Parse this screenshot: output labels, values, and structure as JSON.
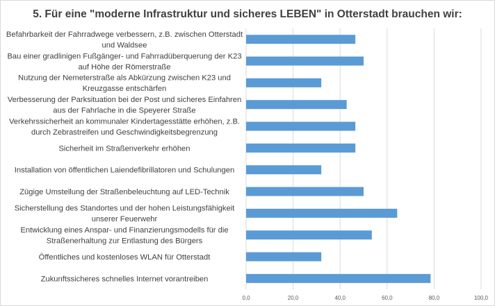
{
  "chart_data": {
    "type": "bar",
    "orientation": "horizontal",
    "title": "5. Für eine \"moderne Infrastruktur und sicheres LEBEN\" in Otterstadt brauchen wir:",
    "xlabel": "",
    "ylabel": "",
    "xlim": [
      0,
      100
    ],
    "x_ticks": [
      "0,0",
      "20,0",
      "40,0",
      "60,0",
      "80,0",
      "100,0"
    ],
    "grid": "vertical",
    "bar_color": "#5b9bd5",
    "categories": [
      [
        "Befahrbarkeit der Fahrradwege verbessern, z.B. zwischen Otterstadt",
        "und Waldsee"
      ],
      [
        "Bau einer gradlinigen Fußgänger- und Fahrradüberquerung der K23",
        "auf Höhe der Römerstraße"
      ],
      [
        "Nutzung der Nemeterstraße als Abkürzung zwischen K23 und",
        "Kreuzgasse entschärfen"
      ],
      [
        "Verbesserung der Parksituation bei der Post und sicheres Einfahren",
        "aus der Fahrlache in die Speyerer Straße"
      ],
      [
        "Verkehrssicherheit an kommunaler Kindertagesstätte erhöhen, z.B.",
        "durch Zebrastreifen und Geschwindigkeitsbegrenzung"
      ],
      [
        "Sicherheit im Straßenverkehr erhöhen"
      ],
      [
        "Installation von öffentlichen Laiendefibrillatoren und Schulungen"
      ],
      [
        "Zügige Umstellung der Straßenbeleuchtung auf LED-Technik"
      ],
      [
        "Sicherstellung des Standortes und der hohen Leistungsfähigkeit",
        "unserer Feuerwehr"
      ],
      [
        "Entwicklung eines Anspar- und Finanzierungsmodells für die",
        "Straßenerhaltung zur Entlastung des Bürgers"
      ],
      [
        "Öffentliches und kostenloses WLAN für Otterstadt"
      ],
      [
        "Zukunftssicheres schnelles Internet vorantreiben"
      ]
    ],
    "values": [
      46.5,
      50.0,
      32.0,
      42.8,
      46.5,
      46.5,
      32.0,
      50.0,
      64.3,
      53.5,
      32.0,
      78.5
    ]
  }
}
